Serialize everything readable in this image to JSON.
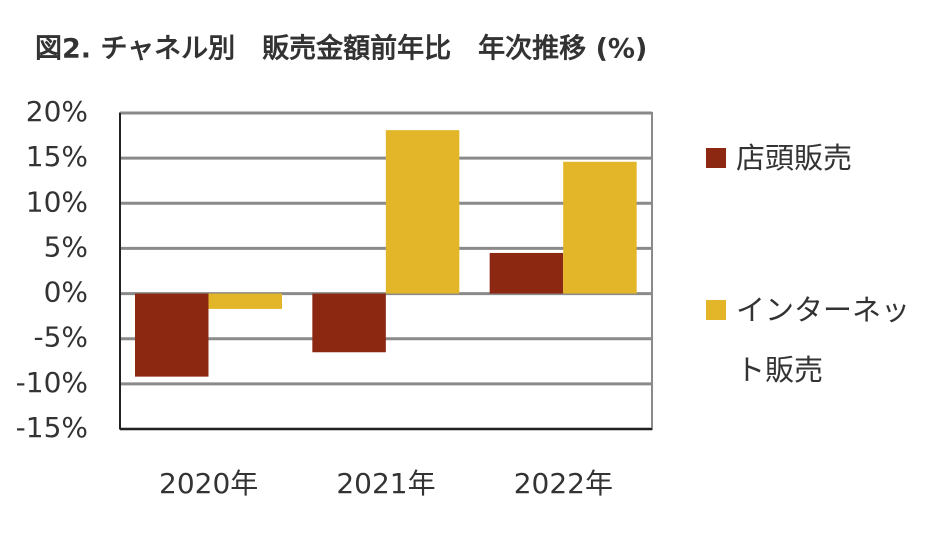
{
  "chart_data": {
    "type": "bar",
    "title": "図2. チャネル別　販売金額前年比　年次推移 (%)",
    "categories": [
      "2020年",
      "2021年",
      "2022年"
    ],
    "series": [
      {
        "name": "店頭販売",
        "color": "#8c2812",
        "values": [
          -9.2,
          -6.5,
          4.5
        ]
      },
      {
        "name": "インターネット販売",
        "color": "#e3b62a",
        "values": [
          -1.7,
          18.1,
          14.6
        ]
      }
    ],
    "ylim": [
      -15,
      20
    ],
    "yticks": [
      {
        "value": -15,
        "label": "-15%"
      },
      {
        "value": -10,
        "label": "-10%"
      },
      {
        "value": -5,
        "label": "-5%"
      },
      {
        "value": 0,
        "label": "0%"
      },
      {
        "value": 5,
        "label": "5%"
      },
      {
        "value": 10,
        "label": "10%"
      },
      {
        "value": 15,
        "label": "15%"
      },
      {
        "value": 20,
        "label": "20%"
      }
    ],
    "grid": true,
    "legend": "right"
  }
}
